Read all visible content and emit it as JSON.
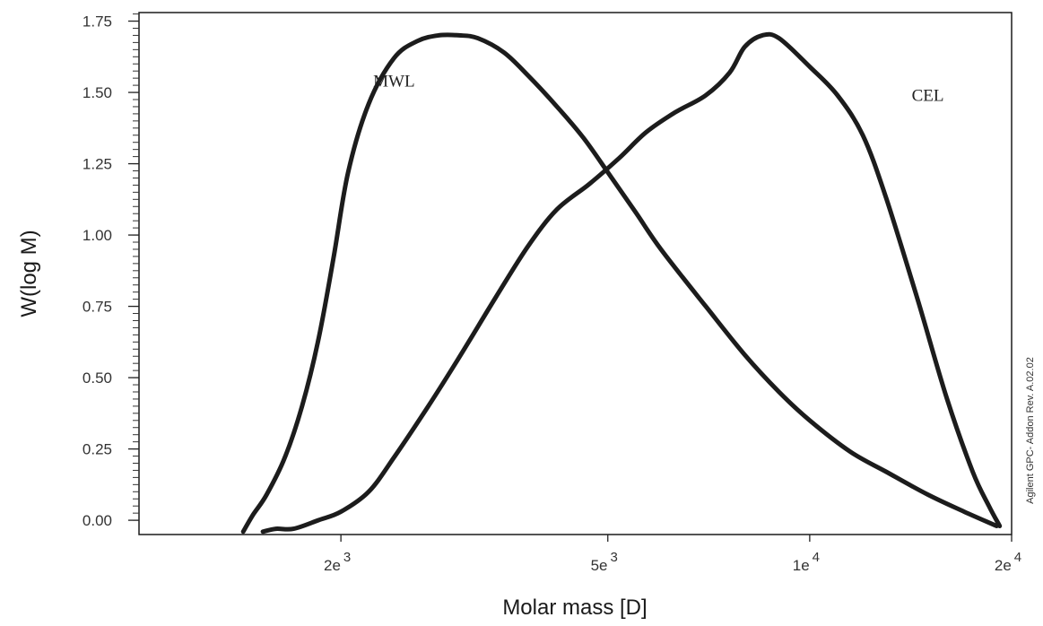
{
  "chart_data": {
    "type": "line",
    "xlabel": "Molar mass [D]",
    "ylabel": "W(log M)",
    "x_scale": "log",
    "xlim": [
      1000,
      20000
    ],
    "ylim": [
      -0.05,
      1.78
    ],
    "x_ticks": [
      {
        "value": 2000,
        "mantissa": "2e",
        "exponent": "3"
      },
      {
        "value": 5000,
        "mantissa": "5e",
        "exponent": "3"
      },
      {
        "value": 10000,
        "mantissa": "1e",
        "exponent": "4"
      },
      {
        "value": 20000,
        "mantissa": "2e",
        "exponent": "4"
      }
    ],
    "y_ticks": [
      "0.00",
      "0.25",
      "0.50",
      "0.75",
      "1.00",
      "1.25",
      "1.50",
      "1.75"
    ],
    "grid": false,
    "series": [
      {
        "name": "MWL",
        "x": [
          1430,
          1480,
          1550,
          1650,
          1750,
          1850,
          1950,
          2050,
          2200,
          2400,
          2600,
          2800,
          3000,
          3200,
          3500,
          3800,
          4200,
          4600,
          5000,
          5500,
          6000,
          7000,
          8000,
          9000,
          10000,
          11500,
          13000,
          15000,
          17000,
          19000
        ],
        "y": [
          -0.04,
          0.02,
          0.09,
          0.22,
          0.4,
          0.63,
          0.92,
          1.22,
          1.46,
          1.62,
          1.68,
          1.7,
          1.7,
          1.69,
          1.64,
          1.56,
          1.45,
          1.34,
          1.22,
          1.08,
          0.95,
          0.75,
          0.58,
          0.45,
          0.35,
          0.24,
          0.17,
          0.09,
          0.03,
          -0.02
        ]
      },
      {
        "name": "CEL",
        "x": [
          1530,
          1600,
          1700,
          1850,
          2000,
          2200,
          2400,
          2700,
          3000,
          3400,
          3800,
          4200,
          4700,
          5200,
          5700,
          6300,
          7000,
          7600,
          8000,
          8500,
          9000,
          10000,
          11000,
          12000,
          13000,
          14500,
          16000,
          17500,
          18500,
          19200
        ],
        "y": [
          -0.04,
          -0.03,
          -0.03,
          0.0,
          0.03,
          0.1,
          0.22,
          0.4,
          0.57,
          0.78,
          0.96,
          1.09,
          1.18,
          1.27,
          1.36,
          1.43,
          1.49,
          1.57,
          1.66,
          1.7,
          1.69,
          1.59,
          1.49,
          1.35,
          1.13,
          0.77,
          0.43,
          0.17,
          0.05,
          -0.02
        ]
      }
    ],
    "annotations": [
      {
        "text": "MWL",
        "x": 2400,
        "y": 1.52
      },
      {
        "text": "CEL",
        "x": 15000,
        "y": 1.47
      }
    ],
    "footnote": "Agilent GPC- Addon  Rev. A.02.02"
  }
}
